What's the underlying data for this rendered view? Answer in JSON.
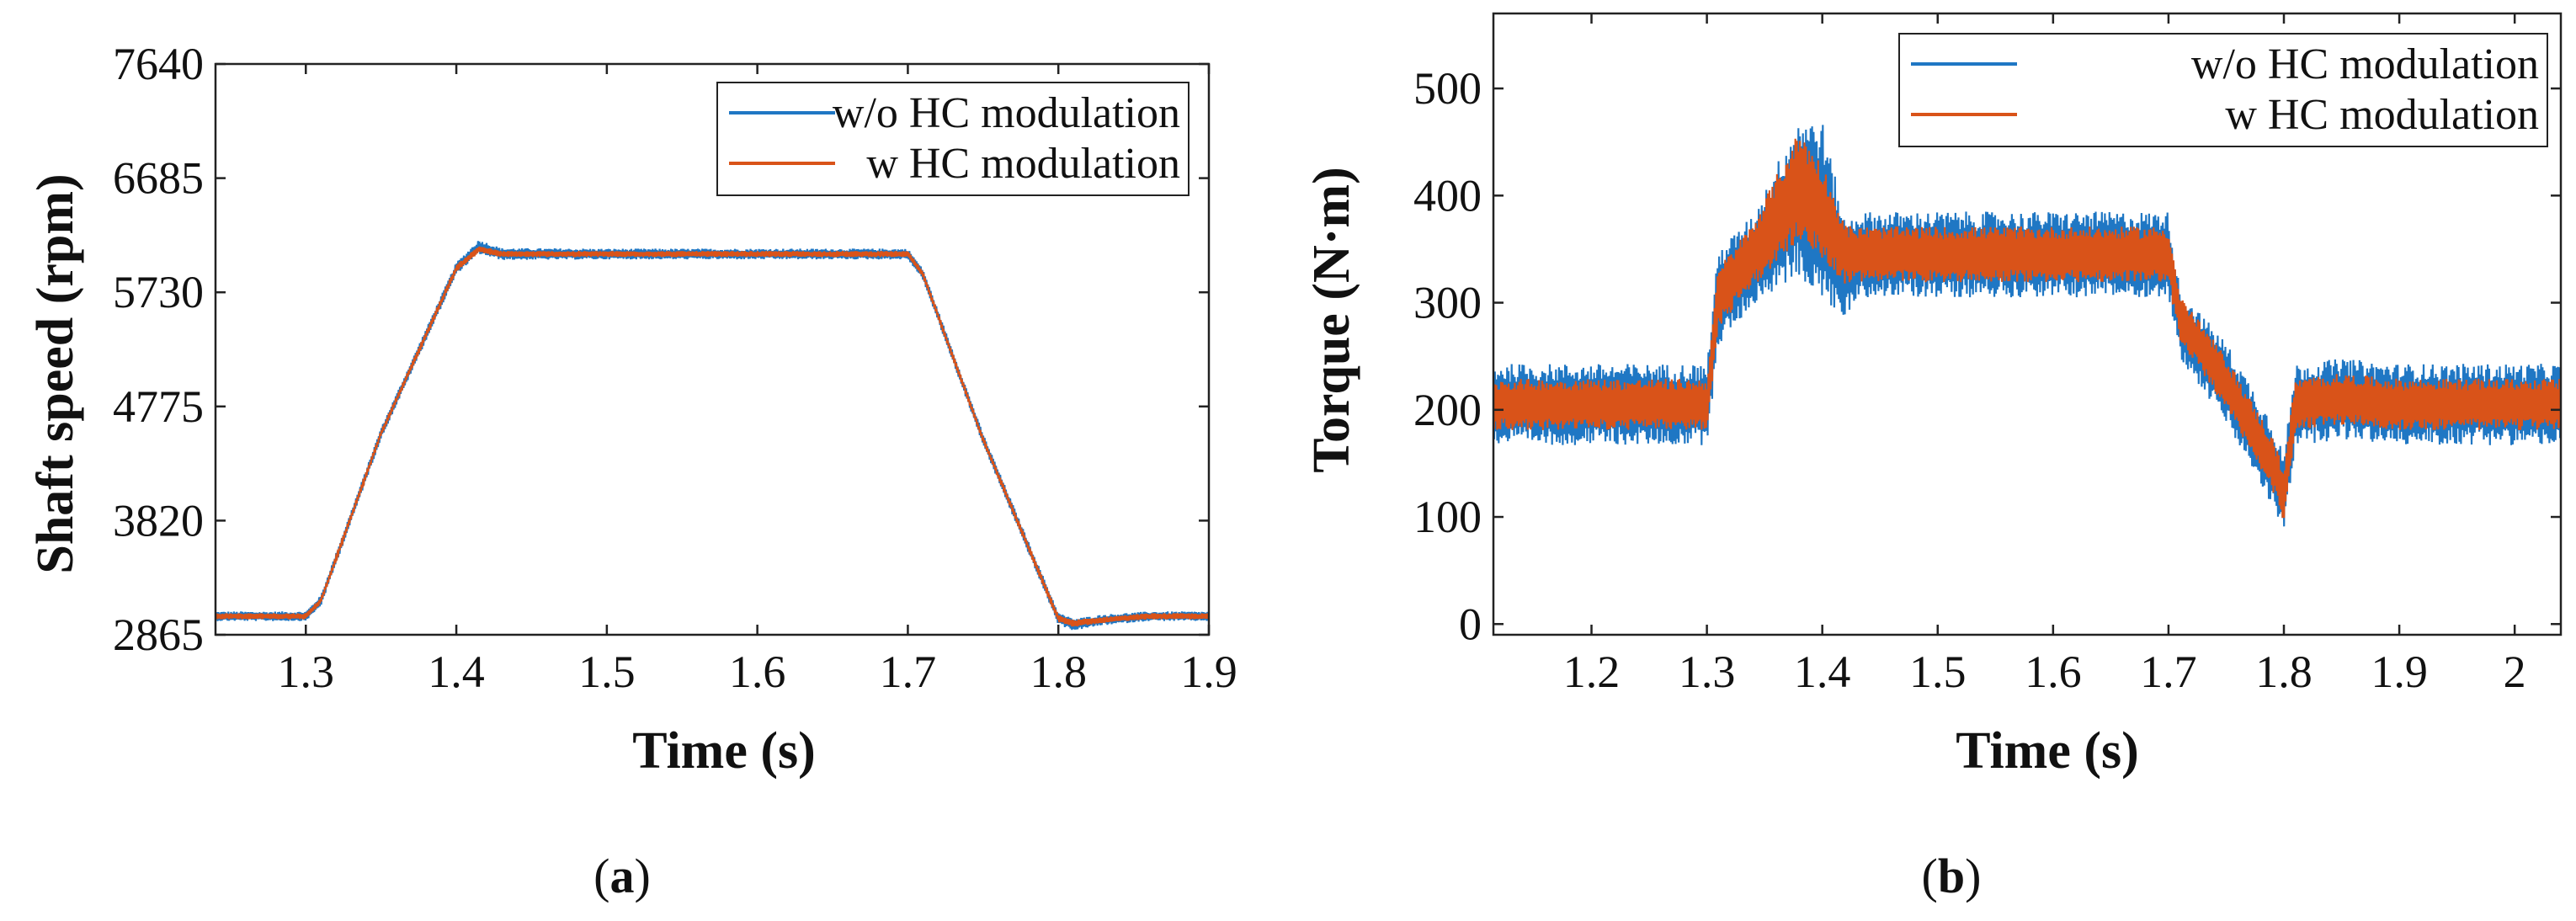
{
  "colors": {
    "series_wo": "#1f77c4",
    "series_w": "#d95319",
    "axis": "#222222"
  },
  "chart_data": [
    {
      "type": "line",
      "panel_label": "a",
      "xlabel": "Time (s)",
      "ylabel": "Shaft speed (rpm)",
      "xlim": [
        1.24,
        1.9
      ],
      "ylim": [
        2865,
        7640
      ],
      "xticks": [
        "1.3",
        "1.4",
        "1.5",
        "1.6",
        "1.7",
        "1.8",
        "1.9"
      ],
      "xtick_values": [
        1.3,
        1.4,
        1.5,
        1.6,
        1.7,
        1.8,
        1.9
      ],
      "yticks": [
        "7640",
        "6685",
        "5730",
        "4775",
        "3820",
        "2865"
      ],
      "ytick_values": [
        7640,
        6685,
        5730,
        4775,
        3820,
        2865
      ],
      "legend_position": "top-right",
      "series": [
        {
          "name": "w/o HC modulation",
          "x": [
            1.24,
            1.3,
            1.31,
            1.35,
            1.4,
            1.415,
            1.43,
            1.5,
            1.6,
            1.7,
            1.71,
            1.75,
            1.8,
            1.81,
            1.83,
            1.86,
            1.9
          ],
          "y": [
            3020,
            3020,
            3150,
            4550,
            5930,
            6110,
            6050,
            6050,
            6050,
            6050,
            5880,
            4500,
            3000,
            2950,
            2990,
            3020,
            3020
          ],
          "band": [
            40,
            40,
            45,
            45,
            50,
            60,
            50,
            45,
            45,
            45,
            45,
            45,
            50,
            50,
            45,
            40,
            40
          ]
        },
        {
          "name": "w HC modulation",
          "x": [
            1.24,
            1.3,
            1.31,
            1.35,
            1.4,
            1.415,
            1.43,
            1.5,
            1.6,
            1.7,
            1.71,
            1.75,
            1.8,
            1.81,
            1.83,
            1.86,
            1.9
          ],
          "y": [
            3020,
            3020,
            3150,
            4550,
            5930,
            6090,
            6050,
            6050,
            6050,
            6050,
            5880,
            4500,
            3000,
            2960,
            2990,
            3020,
            3020
          ],
          "band": [
            25,
            25,
            25,
            25,
            30,
            30,
            25,
            25,
            25,
            25,
            25,
            25,
            30,
            30,
            25,
            25,
            25
          ]
        }
      ]
    },
    {
      "type": "line",
      "panel_label": "b",
      "xlabel": "Time (s)",
      "ylabel": "Torque (N·m)",
      "xlim": [
        1.115,
        2.04
      ],
      "ylim": [
        -10,
        570
      ],
      "xticks": [
        "1.2",
        "1.3",
        "1.4",
        "1.5",
        "1.6",
        "1.7",
        "1.8",
        "1.9",
        "2"
      ],
      "xtick_values": [
        1.2,
        1.3,
        1.4,
        1.5,
        1.6,
        1.7,
        1.8,
        1.9,
        2.0
      ],
      "yticks": [
        "500",
        "400",
        "300",
        "200",
        "100",
        "0"
      ],
      "ytick_values": [
        500,
        400,
        300,
        200,
        100,
        0
      ],
      "legend_position": "top-right",
      "series": [
        {
          "name": "w/o HC modulation",
          "x": [
            1.115,
            1.3,
            1.31,
            1.34,
            1.38,
            1.4,
            1.42,
            1.43,
            1.5,
            1.6,
            1.7,
            1.71,
            1.75,
            1.79,
            1.8,
            1.81,
            1.85,
            1.9,
            2.04
          ],
          "y": [
            205,
            205,
            305,
            340,
            400,
            385,
            330,
            345,
            345,
            345,
            345,
            280,
            225,
            150,
            120,
            205,
            210,
            205,
            205
          ],
          "band": [
            38,
            38,
            45,
            42,
            75,
            85,
            45,
            40,
            40,
            40,
            40,
            32,
            38,
            40,
            38,
            38,
            38,
            38,
            38
          ]
        },
        {
          "name": "w HC modulation",
          "x": [
            1.115,
            1.3,
            1.31,
            1.34,
            1.38,
            1.4,
            1.42,
            1.43,
            1.5,
            1.6,
            1.7,
            1.71,
            1.75,
            1.79,
            1.8,
            1.81,
            1.85,
            1.9,
            2.04
          ],
          "y": [
            205,
            205,
            305,
            345,
            410,
            385,
            345,
            345,
            345,
            345,
            345,
            285,
            225,
            150,
            120,
            205,
            210,
            205,
            205
          ],
          "band": [
            24,
            24,
            28,
            30,
            52,
            45,
            28,
            26,
            26,
            26,
            26,
            22,
            24,
            25,
            25,
            24,
            24,
            24,
            24
          ]
        }
      ]
    }
  ]
}
